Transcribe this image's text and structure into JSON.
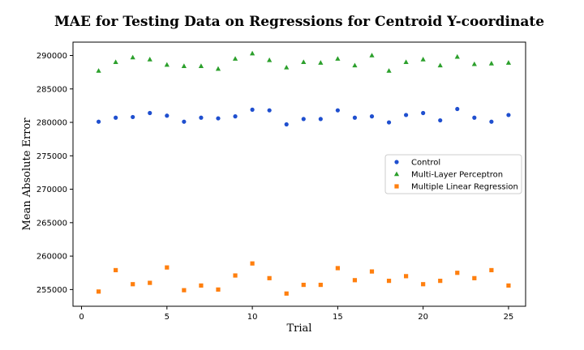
{
  "chart_data": {
    "type": "scatter",
    "title": "MAE for Testing Data on Regressions for Centroid Y-coordinate",
    "xlabel": "Trial",
    "ylabel": "Mean Absolute Error",
    "xlim": [
      -0.5,
      26
    ],
    "ylim": [
      252500,
      292000
    ],
    "xticks": [
      0,
      5,
      10,
      15,
      20,
      25
    ],
    "yticks": [
      255000,
      260000,
      265000,
      270000,
      275000,
      280000,
      285000,
      290000
    ],
    "grid": false,
    "legend_position": "center-right",
    "x": [
      1,
      2,
      3,
      4,
      5,
      6,
      7,
      8,
      9,
      10,
      11,
      12,
      13,
      14,
      15,
      16,
      17,
      18,
      19,
      20,
      21,
      22,
      23,
      24,
      25
    ],
    "series": [
      {
        "name": "Control",
        "marker": "circle",
        "color": "#1f4fcf",
        "values": [
          280100,
          280700,
          280800,
          281400,
          281000,
          280100,
          280700,
          280600,
          280900,
          281900,
          281800,
          279700,
          280500,
          280500,
          281800,
          280700,
          280900,
          280000,
          281100,
          281400,
          280300,
          282000,
          280700,
          280100,
          281100
        ]
      },
      {
        "name": "Multi-Layer Perceptron",
        "marker": "triangle",
        "color": "#2ca02c",
        "values": [
          287700,
          289000,
          289700,
          289400,
          288600,
          288400,
          288400,
          288000,
          289500,
          290300,
          289300,
          288200,
          289000,
          288900,
          289500,
          288500,
          290000,
          287700,
          289000,
          289400,
          288500,
          289800,
          288700,
          288800,
          288900
        ]
      },
      {
        "name": "Multiple Linear Regression",
        "marker": "square",
        "color": "#ff7f0e",
        "values": [
          254700,
          257900,
          255800,
          256000,
          258300,
          254900,
          255600,
          255000,
          257100,
          258900,
          256700,
          254400,
          255700,
          255700,
          258200,
          256400,
          257700,
          256300,
          257000,
          255800,
          256300,
          257500,
          256700,
          257900,
          255600
        ]
      }
    ]
  }
}
